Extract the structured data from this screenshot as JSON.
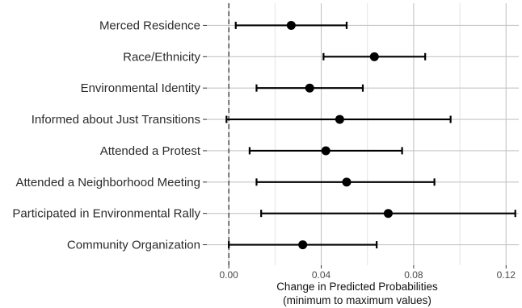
{
  "chart_data": {
    "type": "scatter",
    "subtype": "coefficient-plot-with-error-bars",
    "title": "",
    "xlabel_line1": "Change in Predicted Probabilities",
    "xlabel_line2": "(minimum to maximum values)",
    "ylabel": "",
    "xlim": [
      -0.0095,
      0.1255
    ],
    "x_ticks": [
      0.0,
      0.04,
      0.08,
      0.12
    ],
    "x_tick_labels": [
      "0.00",
      "0.04",
      "0.08",
      "0.12"
    ],
    "reference_line": {
      "x": 0.0,
      "style": "dashed"
    },
    "grid": true,
    "legend": "none",
    "categories": [
      "Merced Residence",
      "Race/Ethnicity",
      "Environmental Identity",
      "Informed about Just Transitions",
      "Attended a Protest",
      "Attended a Neighborhood Meeting",
      "Participated in Environmental Rally",
      "Community Organization"
    ],
    "estimates": [
      0.027,
      0.063,
      0.035,
      0.048,
      0.042,
      0.051,
      0.069,
      0.032
    ],
    "lower": [
      0.003,
      0.041,
      0.012,
      -0.001,
      0.009,
      0.012,
      0.014,
      0.0
    ],
    "upper": [
      0.051,
      0.085,
      0.058,
      0.096,
      0.075,
      0.089,
      0.124,
      0.064
    ],
    "colors": {
      "background": "#ffffff",
      "grid_major": "#c4c4c4",
      "grid_minor": "#e4e4e4",
      "marks": "#000000",
      "reference_line": "#333333"
    }
  }
}
